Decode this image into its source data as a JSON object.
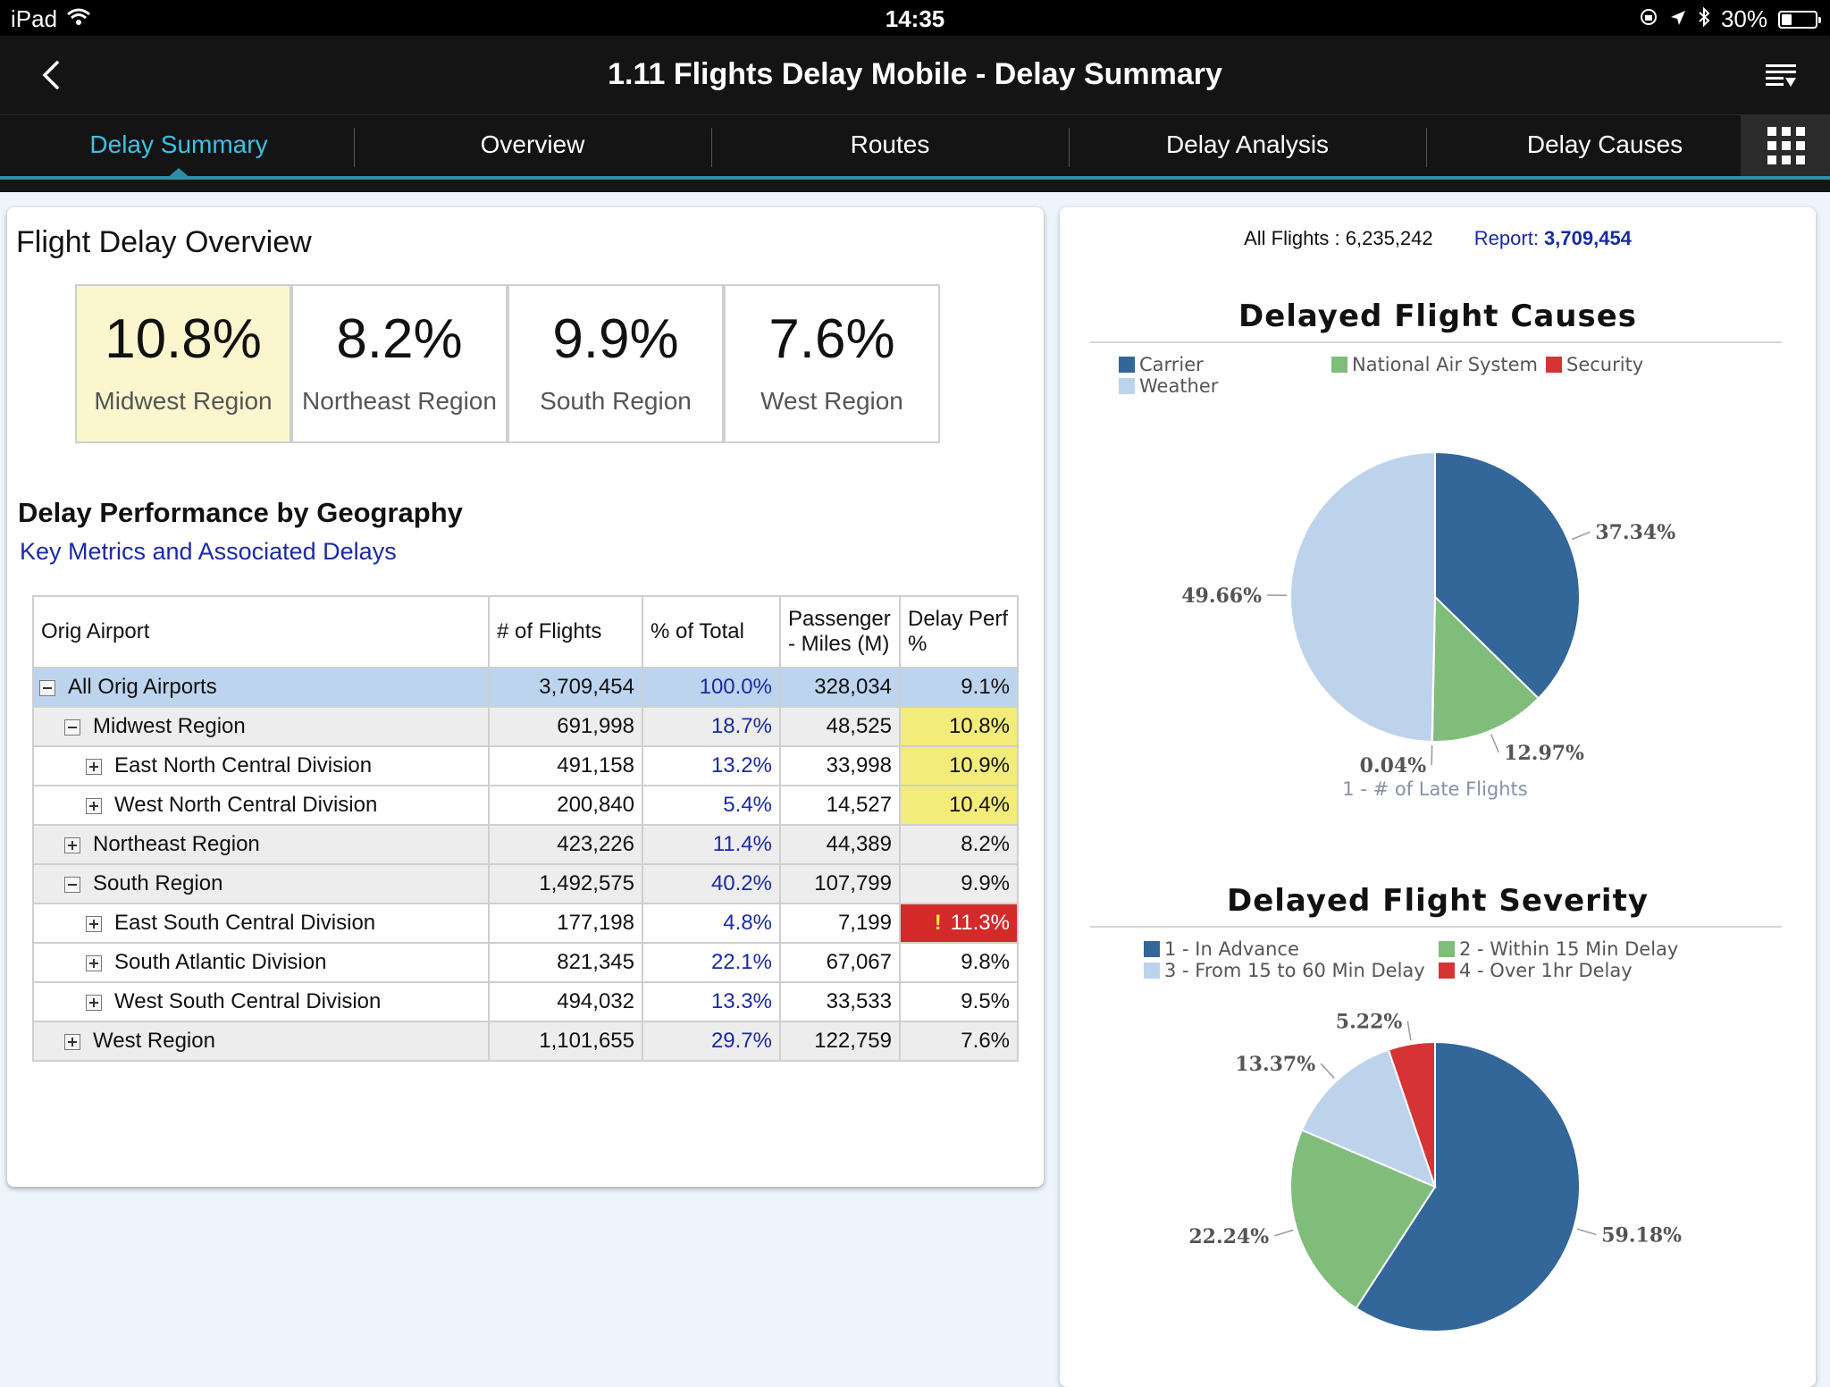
{
  "status": {
    "device": "iPad",
    "time": "14:35",
    "battery": "30%",
    "battery_level": 0.3
  },
  "header": {
    "title": "1.11 Flights Delay Mobile - Delay Summary"
  },
  "tabs": [
    {
      "label": "Delay Summary",
      "active": true
    },
    {
      "label": "Overview"
    },
    {
      "label": "Routes"
    },
    {
      "label": "Delay Analysis"
    },
    {
      "label": "Delay Causes"
    }
  ],
  "left": {
    "title": "Flight Delay Overview",
    "kpis": [
      {
        "value": "10.8%",
        "label": "Midwest Region",
        "selected": true
      },
      {
        "value": "8.2%",
        "label": "Northeast Region"
      },
      {
        "value": "9.9%",
        "label": "South Region"
      },
      {
        "value": "7.6%",
        "label": "West Region"
      }
    ],
    "section_title": "Delay Performance by Geography",
    "section_subtitle": "Key Metrics and Associated Delays",
    "table": {
      "columns": [
        "Orig Airport",
        "# of Flights",
        "% of Total",
        "Passenger - Miles (M)",
        "Delay Perf %"
      ],
      "rows": [
        {
          "name": "All Orig Airports",
          "flights": "3,709,454",
          "pct": "100.0%",
          "miles": "328,034",
          "delay": "9.1%",
          "level": 0,
          "expander": "minus"
        },
        {
          "name": "Midwest Region",
          "flights": "691,998",
          "pct": "18.7%",
          "miles": "48,525",
          "delay": "10.8%",
          "level": 1,
          "expander": "minus",
          "highlight": "yellow"
        },
        {
          "name": "East North Central Division",
          "flights": "491,158",
          "pct": "13.2%",
          "miles": "33,998",
          "delay": "10.9%",
          "level": 2,
          "expander": "plus",
          "highlight": "yellow"
        },
        {
          "name": "West North Central Division",
          "flights": "200,840",
          "pct": "5.4%",
          "miles": "14,527",
          "delay": "10.4%",
          "level": 2,
          "expander": "plus",
          "highlight": "yellow"
        },
        {
          "name": "Northeast Region",
          "flights": "423,226",
          "pct": "11.4%",
          "miles": "44,389",
          "delay": "8.2%",
          "level": 1,
          "expander": "plus"
        },
        {
          "name": "South Region",
          "flights": "1,492,575",
          "pct": "40.2%",
          "miles": "107,799",
          "delay": "9.9%",
          "level": 1,
          "expander": "minus"
        },
        {
          "name": "East South Central Division",
          "flights": "177,198",
          "pct": "4.8%",
          "miles": "7,199",
          "delay": "11.3%",
          "level": 2,
          "expander": "plus",
          "highlight": "red",
          "alert": "!"
        },
        {
          "name": "South Atlantic Division",
          "flights": "821,345",
          "pct": "22.1%",
          "miles": "67,067",
          "delay": "9.8%",
          "level": 2,
          "expander": "plus"
        },
        {
          "name": "West South Central Division",
          "flights": "494,032",
          "pct": "13.3%",
          "miles": "33,533",
          "delay": "9.5%",
          "level": 2,
          "expander": "plus"
        },
        {
          "name": "West Region",
          "flights": "1,101,655",
          "pct": "29.7%",
          "miles": "122,759",
          "delay": "7.6%",
          "level": 1,
          "expander": "plus"
        }
      ]
    }
  },
  "right": {
    "all_flights_label": "All Flights : 6,235,242",
    "report_label": "Report: ",
    "report_value": "3,709,454"
  },
  "chart_data": [
    {
      "type": "pie",
      "title": "Delayed Flight Causes",
      "legend_position": "top",
      "xlabel": "1 - # of Late Flights",
      "series": [
        {
          "name": "Carrier",
          "value": 37.34,
          "label": "37.34%",
          "color": "#336699"
        },
        {
          "name": "National Air System",
          "value": 12.97,
          "label": "12.97%",
          "color": "#80bc7a"
        },
        {
          "name": "Security",
          "value": 0.04,
          "label": "0.04%",
          "color": "#d63434"
        },
        {
          "name": "Weather",
          "value": 49.66,
          "label": "49.66%",
          "color": "#bdd3eb"
        }
      ]
    },
    {
      "type": "pie",
      "title": "Delayed Flight Severity",
      "legend_position": "top",
      "xlabel": "",
      "series": [
        {
          "name": "1 - In Advance",
          "value": 59.18,
          "label": "59.18%",
          "color": "#336699"
        },
        {
          "name": "2 - Within 15 Min Delay",
          "value": 22.24,
          "label": "22.24%",
          "color": "#80bc7a"
        },
        {
          "name": "3 - From 15 to 60 Min Delay",
          "value": 13.37,
          "label": "13.37%",
          "color": "#bdd3eb"
        },
        {
          "name": "4 - Over 1hr Delay",
          "value": 5.22,
          "label": "5.22%",
          "color": "#d63434"
        }
      ]
    }
  ]
}
